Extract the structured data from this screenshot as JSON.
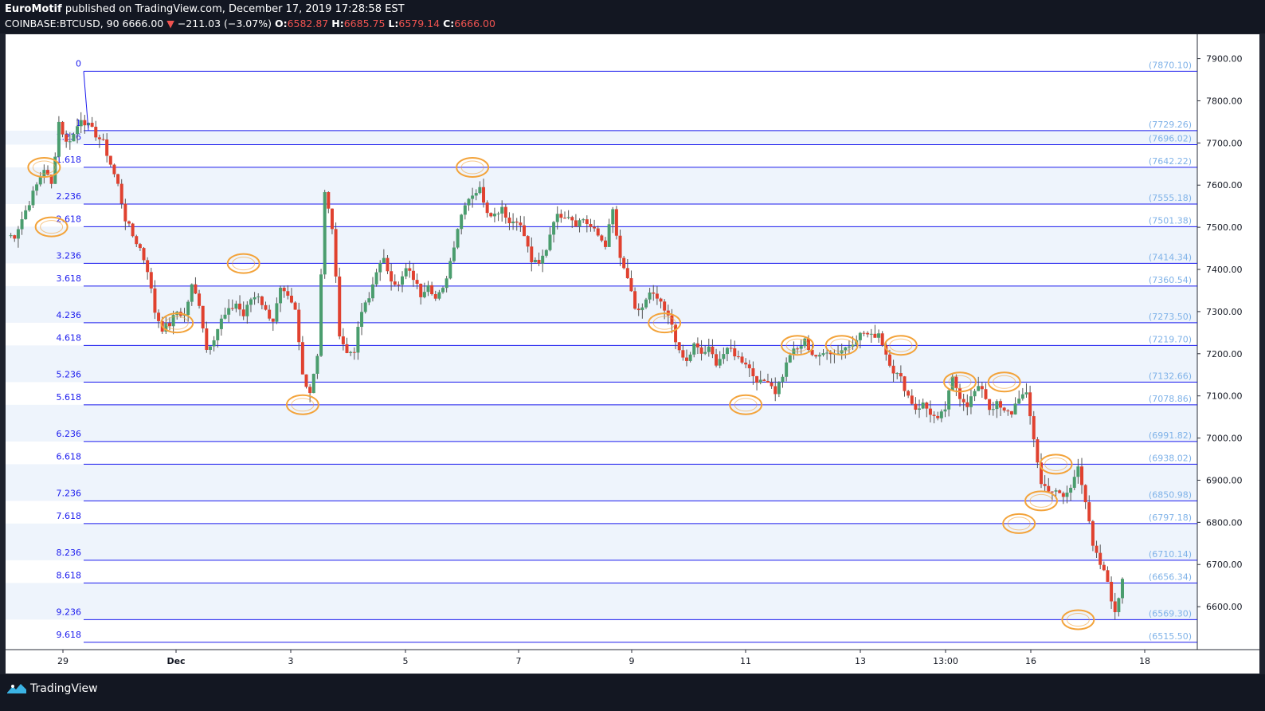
{
  "header": {
    "author": "EuroMotif",
    "published_text": "published on TradingView.com, December 17, 2019 17:28:58 EST",
    "symbol": "COINBASE:BTCUSD, 90",
    "last": "6666.00",
    "arrow": "▼",
    "change": "−211.03 (−3.07%)",
    "o_label": "O:",
    "o_value": "6582.87",
    "h_label": "H:",
    "h_value": "6685.75",
    "l_label": "L:",
    "l_value": "6579.14",
    "c_label": "C:",
    "c_value": "6666.00"
  },
  "footer": {
    "brand": "TradingView",
    "logo_icon": "tradingview-logo-icon"
  },
  "colors": {
    "up": "#4a9d6e",
    "down": "#e0412f",
    "fib_line": "#1a1aee",
    "fib_label": "#1a1aee",
    "price_label": "#7fb2e8",
    "highlight": "#f3a33a",
    "band": "#eef4fc"
  },
  "chart_data": {
    "type": "candlestick",
    "ylim": [
      6500,
      7920
    ],
    "y_ticks": [
      "7900.00",
      "7800.00",
      "7700.00",
      "7600.00",
      "7500.00",
      "7400.00",
      "7300.00",
      "7200.00",
      "7100.00",
      "7000.00",
      "6900.00",
      "6800.00",
      "6700.00",
      "6600.00",
      "6500.00"
    ],
    "x_ticks": [
      "29",
      "Dec",
      "3",
      "5",
      "7",
      "9",
      "11",
      "13",
      "13:00",
      "16",
      "18"
    ],
    "fib_levels": [
      {
        "ratio": "0",
        "price": "(7870.10)",
        "value": 7870.1
      },
      {
        "ratio": "1",
        "price": "(7729.26)",
        "value": 7729.26
      },
      {
        "ratio": "1.236",
        "price": "(7696.02)",
        "value": 7696.02
      },
      {
        "ratio": "1.618",
        "price": "(7642.22)",
        "value": 7642.22
      },
      {
        "ratio": "2.236",
        "price": "(7555.18)",
        "value": 7555.18
      },
      {
        "ratio": "2.618",
        "price": "(7501.38)",
        "value": 7501.38
      },
      {
        "ratio": "3.236",
        "price": "(7414.34)",
        "value": 7414.34
      },
      {
        "ratio": "3.618",
        "price": "(7360.54)",
        "value": 7360.54
      },
      {
        "ratio": "4.236",
        "price": "(7273.50)",
        "value": 7273.5
      },
      {
        "ratio": "4.618",
        "price": "(7219.70)",
        "value": 7219.7
      },
      {
        "ratio": "5.236",
        "price": "(7132.66)",
        "value": 7132.66
      },
      {
        "ratio": "5.618",
        "price": "(7078.86)",
        "value": 7078.86
      },
      {
        "ratio": "6.236",
        "price": "(6991.82)",
        "value": 6991.82
      },
      {
        "ratio": "6.618",
        "price": "(6938.02)",
        "value": 6938.02
      },
      {
        "ratio": "7.236",
        "price": "(6850.98)",
        "value": 6850.98
      },
      {
        "ratio": "7.618",
        "price": "(6797.18)",
        "value": 6797.18
      },
      {
        "ratio": "8.236",
        "price": "(6710.14)",
        "value": 6710.14
      },
      {
        "ratio": "8.618",
        "price": "(6656.34)",
        "value": 6656.34
      },
      {
        "ratio": "9.236",
        "price": "(6569.30)",
        "value": 6569.3
      },
      {
        "ratio": "9.618",
        "price": "(6515.50)",
        "value": 6515.5
      }
    ],
    "anchors": [
      7480,
      7480,
      7520,
      7560,
      7600,
      7640,
      7600,
      7750,
      7700,
      7720,
      7760,
      7740,
      7720,
      7700,
      7650,
      7600,
      7520,
      7480,
      7450,
      7400,
      7300,
      7260,
      7270,
      7300,
      7290,
      7360,
      7320,
      7210,
      7240,
      7280,
      7300,
      7320,
      7290,
      7330,
      7340,
      7300,
      7280,
      7350,
      7330,
      7300,
      7150,
      7110,
      7200,
      7580,
      7500,
      7250,
      7200,
      7210,
      7300,
      7330,
      7400,
      7420,
      7380,
      7360,
      7400,
      7380,
      7340,
      7370,
      7330,
      7350,
      7420,
      7500,
      7560,
      7580,
      7590,
      7540,
      7530,
      7550,
      7510,
      7520,
      7480,
      7420,
      7410,
      7450,
      7520,
      7530,
      7530,
      7510,
      7520,
      7500,
      7480,
      7460,
      7540,
      7420,
      7380,
      7300,
      7310,
      7340,
      7330,
      7300,
      7270,
      7200,
      7180,
      7220,
      7200,
      7210,
      7180,
      7200,
      7210,
      7190,
      7180,
      7150,
      7130,
      7140,
      7110,
      7150,
      7200,
      7210,
      7230,
      7200,
      7190,
      7210,
      7200,
      7210,
      7220,
      7240,
      7250,
      7240,
      7250,
      7200,
      7160,
      7140,
      7100,
      7070,
      7080,
      7060,
      7040,
      7070,
      7140,
      7100,
      7080,
      7110,
      7120,
      7070,
      7080,
      7060,
      7060,
      7100,
      7100,
      7000,
      6890,
      6880,
      6870,
      6860,
      6880,
      6940,
      6850,
      6740,
      6700,
      6660,
      6580,
      6666
    ],
    "highlight_circles": [
      {
        "t": 5,
        "v": 7642
      },
      {
        "t": 6,
        "v": 7501
      },
      {
        "t": 23,
        "v": 7273
      },
      {
        "t": 32,
        "v": 7414
      },
      {
        "t": 40,
        "v": 7079
      },
      {
        "t": 63,
        "v": 7642
      },
      {
        "t": 89,
        "v": 7273
      },
      {
        "t": 100,
        "v": 7079
      },
      {
        "t": 107,
        "v": 7220
      },
      {
        "t": 113,
        "v": 7220
      },
      {
        "t": 121,
        "v": 7220
      },
      {
        "t": 129,
        "v": 7133
      },
      {
        "t": 135,
        "v": 7133
      },
      {
        "t": 137,
        "v": 6797
      },
      {
        "t": 140,
        "v": 6851
      },
      {
        "t": 142,
        "v": 6938
      },
      {
        "t": 145,
        "v": 6569
      }
    ]
  }
}
